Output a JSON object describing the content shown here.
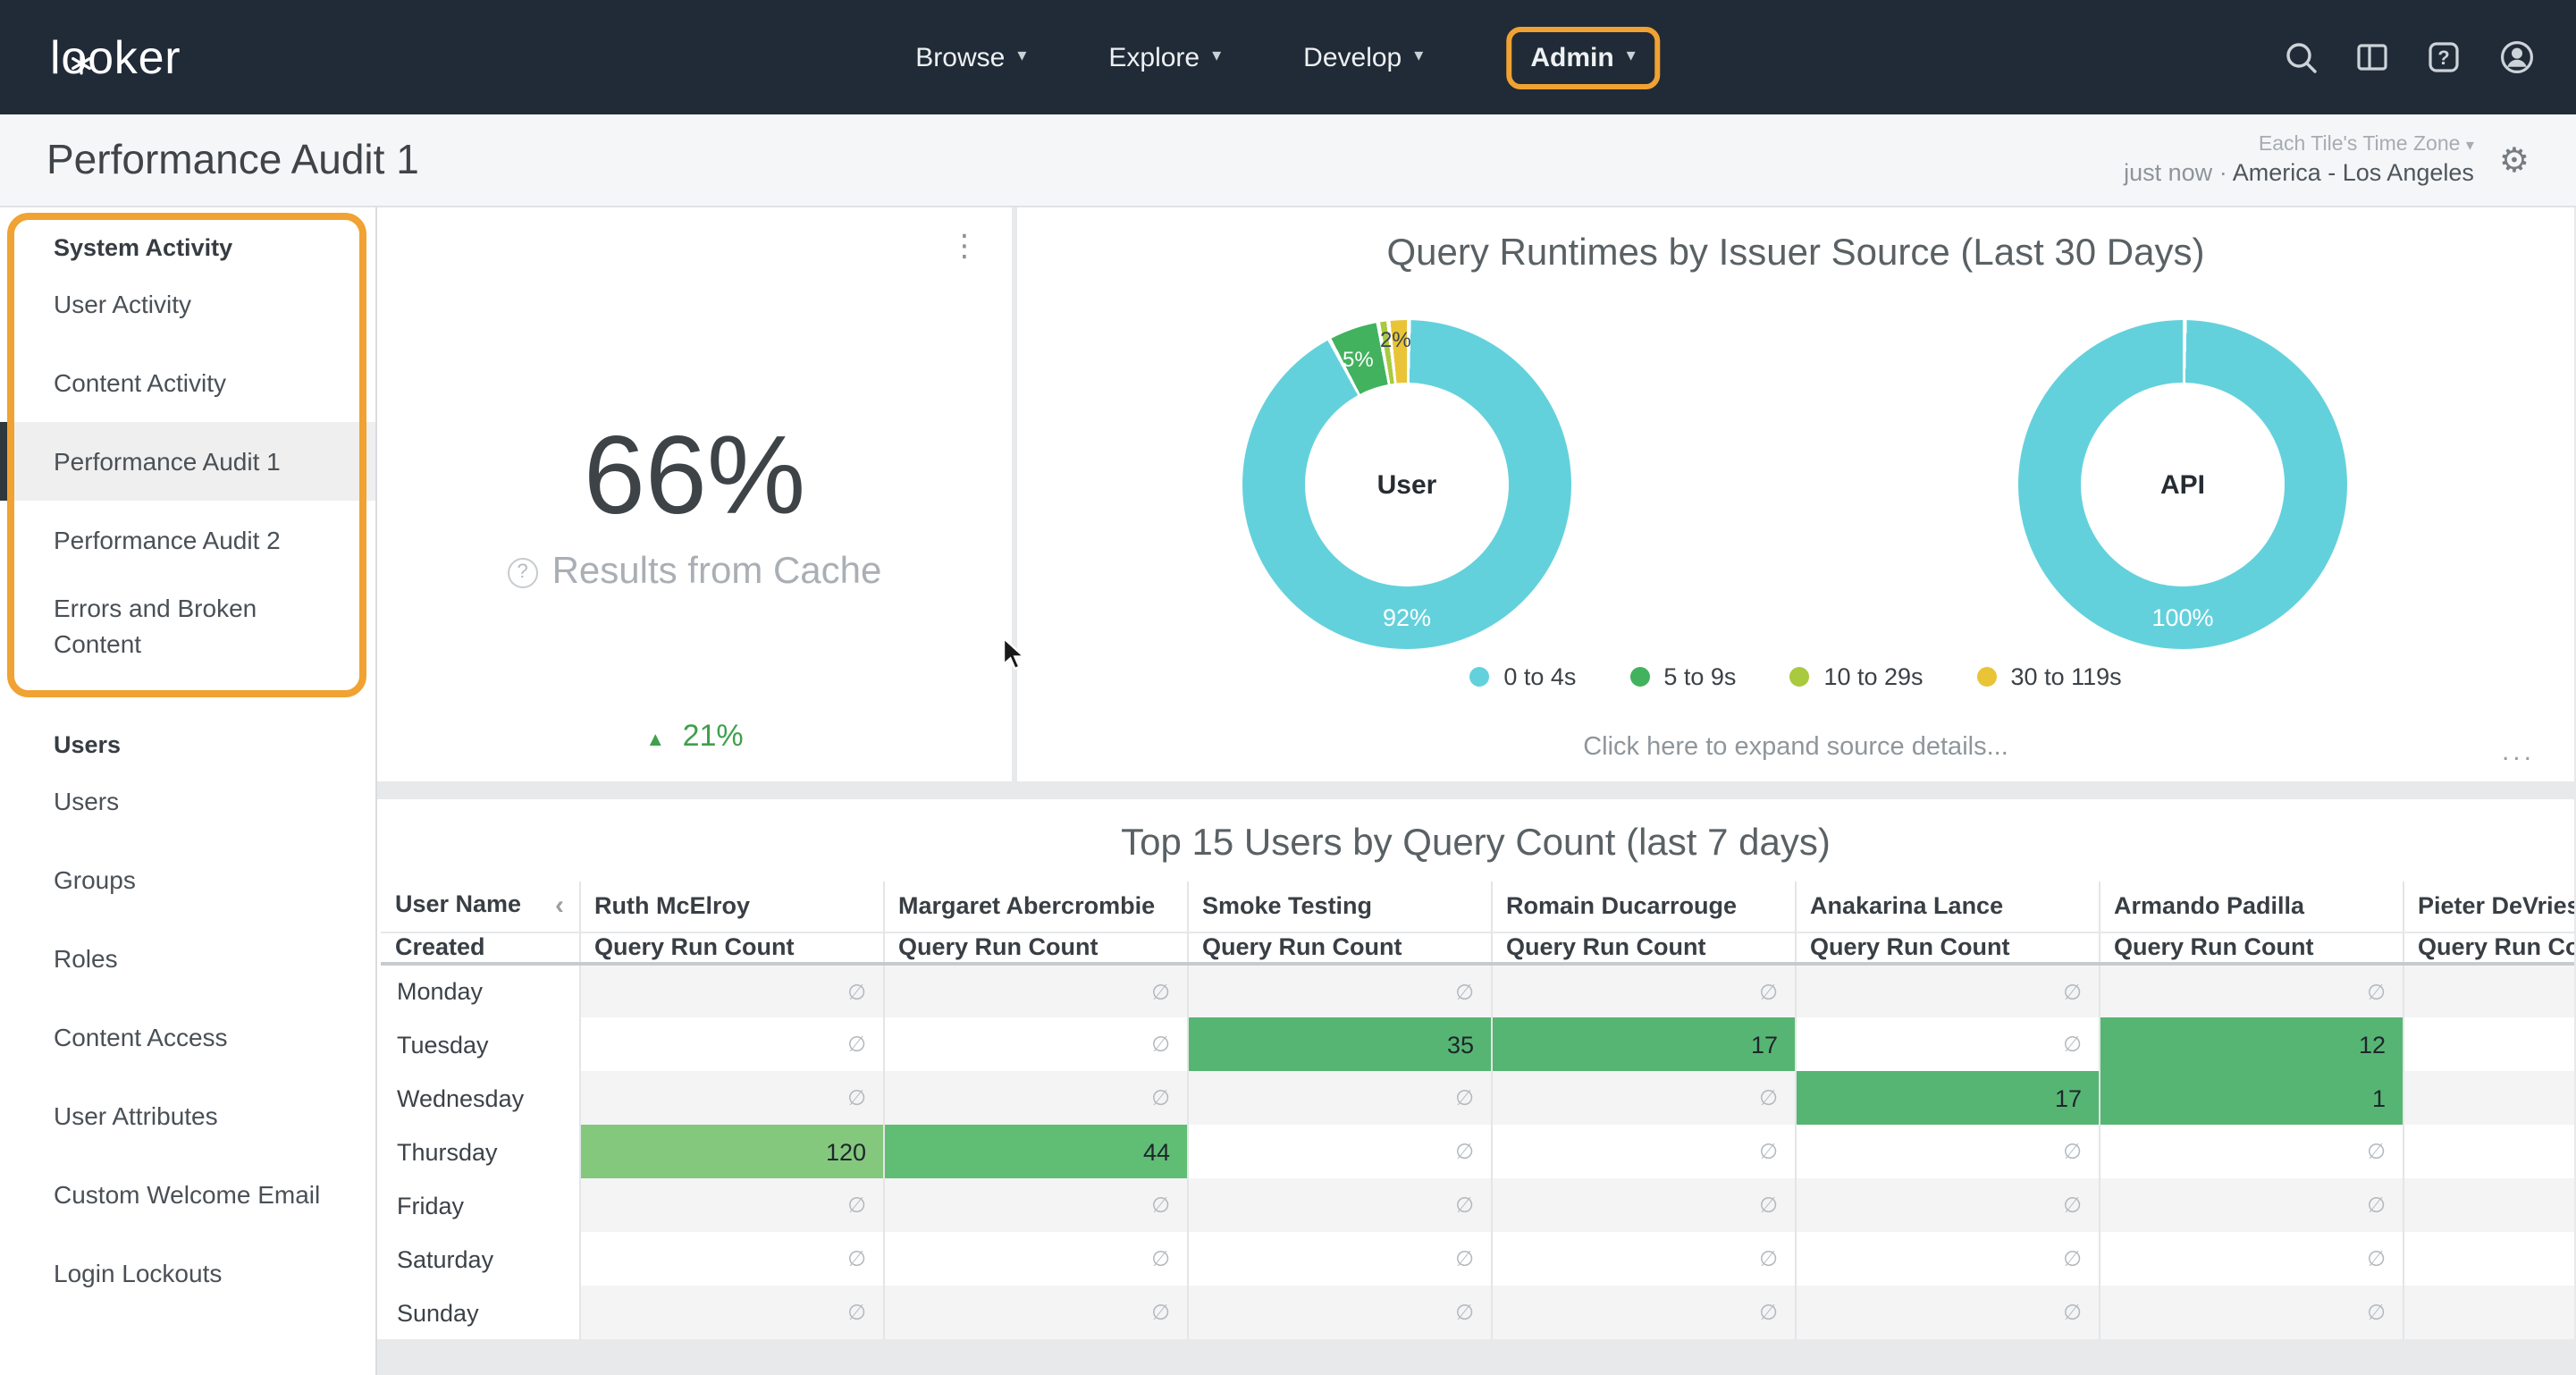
{
  "colors": {
    "annotation_orange": "#f0a232",
    "nav_background": "#212b37",
    "teal": "#63d1dc",
    "green": "#42b25e",
    "lime": "#a9c93f",
    "yellow": "#e9c437",
    "table_green": "#57b573",
    "positive_green": "#3fa04c"
  },
  "nav": {
    "logo": "looker",
    "items": [
      {
        "label": "Browse"
      },
      {
        "label": "Explore"
      },
      {
        "label": "Develop"
      },
      {
        "label": "Admin",
        "highlighted": true
      }
    ]
  },
  "icons": {
    "kebab": "⋮",
    "gear": "⚙",
    "chevron_down": "▾",
    "question_mark": "?",
    "up_triangle": "▲",
    "dot_separator": "·"
  },
  "header": {
    "title": "Performance Audit 1",
    "timezone_selector": "Each Tile's Time Zone",
    "refreshed": "just now",
    "separator": "·",
    "timezone": "America - Los Angeles"
  },
  "sidebar": {
    "sections": [
      {
        "title": "System Activity",
        "highlighted": true,
        "items": [
          {
            "label": "User Activity"
          },
          {
            "label": "Content Activity"
          },
          {
            "label": "Performance Audit 1",
            "selected": true
          },
          {
            "label": "Performance Audit 2"
          },
          {
            "label": "Errors and Broken Content"
          }
        ]
      },
      {
        "title": "Users",
        "items": [
          {
            "label": "Users"
          },
          {
            "label": "Groups"
          },
          {
            "label": "Roles"
          },
          {
            "label": "Content Access"
          },
          {
            "label": "User Attributes"
          },
          {
            "label": "Custom Welcome Email"
          },
          {
            "label": "Login Lockouts"
          }
        ]
      }
    ]
  },
  "cache_tile": {
    "value": "66%",
    "label": "Results from Cache",
    "change_icon": "▲",
    "change": "21%"
  },
  "runtime_tile": {
    "title": "Query Runtimes by Issuer Source (Last 30 Days)",
    "charts": [
      {
        "center_label": "User",
        "main_pct": "92%",
        "slice_labels": [
          {
            "text": "5%"
          },
          {
            "text": "2%"
          }
        ],
        "segments": [
          {
            "name": "0 to 4s",
            "pct": 92,
            "color": "#63d1dc"
          },
          {
            "name": "5 to 9s",
            "pct": 5,
            "color": "#42b25e"
          },
          {
            "name": "10 to 29s",
            "pct": 1,
            "color": "#a9c93f"
          },
          {
            "name": "30 to 119s",
            "pct": 2,
            "color": "#e9c437"
          }
        ]
      },
      {
        "center_label": "API",
        "main_pct": "100%",
        "slice_labels": [],
        "segments": [
          {
            "name": "0 to 4s",
            "pct": 100,
            "color": "#63d1dc"
          }
        ]
      }
    ],
    "legend": [
      {
        "label": "0 to 4s",
        "color": "#63d1dc"
      },
      {
        "label": "5 to 9s",
        "color": "#42b25e"
      },
      {
        "label": "10 to 29s",
        "color": "#a9c93f"
      },
      {
        "label": "30 to 119s",
        "color": "#e9c437"
      }
    ],
    "expand_link": "Click here to expand source details...",
    "more": "..."
  },
  "table_tile": {
    "title": "Top 15 Users by Query Count (last 7 days)",
    "corner_header": "User Name",
    "collapse_icon": "‹",
    "row_header": "Created",
    "measure_label": "Query Run Count",
    "null_symbol": "∅",
    "users": [
      "Ruth McElroy",
      "Margaret Abercrombie",
      "Smoke Testing",
      "Romain Ducarrouge",
      "Anakarina Lance",
      "Armando Padilla",
      "Pieter DeVries"
    ],
    "rows": [
      {
        "day": "Monday",
        "cells": [
          null,
          null,
          null,
          null,
          null,
          null,
          null
        ]
      },
      {
        "day": "Tuesday",
        "cells": [
          null,
          null,
          {
            "v": 35,
            "bg": "#57b573"
          },
          {
            "v": 17,
            "bg": "#57b573"
          },
          null,
          {
            "v": 12,
            "bg": "#57b573"
          },
          null
        ]
      },
      {
        "day": "Wednesday",
        "cells": [
          null,
          null,
          null,
          null,
          {
            "v": 17,
            "bg": "#57b573"
          },
          {
            "v": 1,
            "bg": "#57b573"
          },
          null
        ]
      },
      {
        "day": "Thursday",
        "cells": [
          {
            "v": 120,
            "bg": "#84c87e"
          },
          {
            "v": 44,
            "bg": "#60bd74"
          },
          null,
          null,
          null,
          null,
          null
        ]
      },
      {
        "day": "Friday",
        "cells": [
          null,
          null,
          null,
          null,
          null,
          null,
          null
        ]
      },
      {
        "day": "Saturday",
        "cells": [
          null,
          null,
          null,
          null,
          null,
          null,
          null
        ]
      },
      {
        "day": "Sunday",
        "cells": [
          null,
          null,
          null,
          null,
          null,
          null,
          null
        ]
      }
    ]
  },
  "chart_data": [
    {
      "type": "other",
      "subtype": "single-value",
      "title": "Results from Cache",
      "value_pct": 66,
      "change_pct": 21,
      "change_direction": "up"
    },
    {
      "type": "pie",
      "subtype": "donut",
      "title": "Query Runtimes by Issuer Source (Last 30 Days)",
      "legend_position": "bottom",
      "donuts": [
        {
          "label": "User",
          "categories": [
            "0 to 4s",
            "5 to 9s",
            "10 to 29s",
            "30 to 119s"
          ],
          "values_pct": [
            92,
            5,
            1,
            2
          ]
        },
        {
          "label": "API",
          "categories": [
            "0 to 4s"
          ],
          "values_pct": [
            100
          ]
        }
      ]
    },
    {
      "type": "table",
      "title": "Top 15 Users by Query Count (last 7 days)",
      "row_dimension": "Created",
      "measure": "Query Run Count",
      "columns": [
        "Ruth McElroy",
        "Margaret Abercrombie",
        "Smoke Testing",
        "Romain Ducarrouge",
        "Anakarina Lance",
        "Armando Padilla",
        "Pieter DeVries"
      ],
      "rows": [
        {
          "day": "Monday",
          "values": [
            null,
            null,
            null,
            null,
            null,
            null,
            null
          ]
        },
        {
          "day": "Tuesday",
          "values": [
            null,
            null,
            35,
            17,
            null,
            12,
            null
          ]
        },
        {
          "day": "Wednesday",
          "values": [
            null,
            null,
            null,
            null,
            17,
            1,
            null
          ]
        },
        {
          "day": "Thursday",
          "values": [
            120,
            44,
            null,
            null,
            null,
            null,
            null
          ]
        },
        {
          "day": "Friday",
          "values": [
            null,
            null,
            null,
            null,
            null,
            null,
            null
          ]
        },
        {
          "day": "Saturday",
          "values": [
            null,
            null,
            null,
            null,
            null,
            null,
            null
          ]
        },
        {
          "day": "Sunday",
          "values": [
            null,
            null,
            null,
            null,
            null,
            null,
            null
          ]
        }
      ]
    }
  ]
}
